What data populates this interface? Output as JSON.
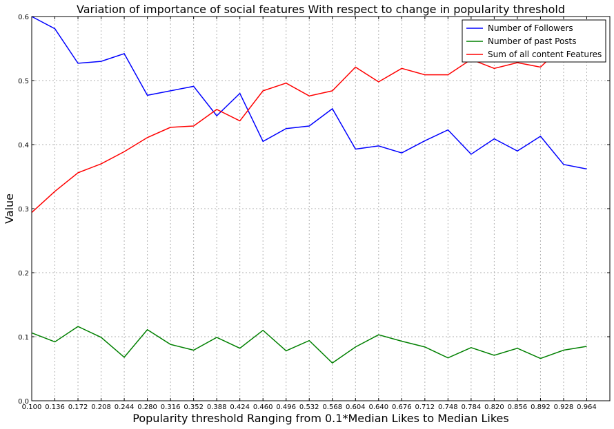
{
  "chart_data": {
    "type": "line",
    "title": "Variation of importance of social features With respect to change in popularity threshold",
    "xlabel": "Popularity threshold Ranging from 0.1*Median Likes to Median Likes",
    "ylabel": "Value",
    "x": [
      0.1,
      0.136,
      0.172,
      0.208,
      0.244,
      0.28,
      0.316,
      0.352,
      0.388,
      0.424,
      0.46,
      0.496,
      0.532,
      0.568,
      0.604,
      0.64,
      0.676,
      0.712,
      0.748,
      0.784,
      0.82,
      0.856,
      0.892,
      0.928,
      0.964
    ],
    "x_tick_labels": [
      "0.100",
      "0.136",
      "0.172",
      "0.208",
      "0.244",
      "0.280",
      "0.316",
      "0.352",
      "0.388",
      "0.424",
      "0.460",
      "0.496",
      "0.532",
      "0.568",
      "0.604",
      "0.640",
      "0.676",
      "0.712",
      "0.748",
      "0.784",
      "0.820",
      "0.856",
      "0.892",
      "0.928",
      "0.964"
    ],
    "xlim": [
      0.1,
      1.0
    ],
    "ylim": [
      0.0,
      0.6
    ],
    "y_tick_labels": [
      "0.0",
      "0.1",
      "0.2",
      "0.3",
      "0.4",
      "0.5",
      "0.6"
    ],
    "grid": true,
    "legend_position": "top-right",
    "series": [
      {
        "name": "Number of Followers",
        "color": "#0000ff",
        "values": [
          0.6,
          0.581,
          0.527,
          0.53,
          0.542,
          0.477,
          0.484,
          0.491,
          0.445,
          0.48,
          0.405,
          0.425,
          0.429,
          0.456,
          0.393,
          0.398,
          0.387,
          0.406,
          0.423,
          0.385,
          0.409,
          0.39,
          0.413,
          0.369,
          0.362
        ]
      },
      {
        "name": "Number of past Posts",
        "color": "#008000",
        "values": [
          0.106,
          0.092,
          0.116,
          0.099,
          0.068,
          0.111,
          0.088,
          0.079,
          0.099,
          0.082,
          0.11,
          0.078,
          0.094,
          0.059,
          0.084,
          0.103,
          0.093,
          0.084,
          0.067,
          0.083,
          0.071,
          0.082,
          0.066,
          0.079,
          0.085
        ]
      },
      {
        "name": "Sum of all content Features",
        "color": "#ff0000",
        "values": [
          0.294,
          0.327,
          0.356,
          0.37,
          0.389,
          0.411,
          0.427,
          0.429,
          0.455,
          0.437,
          0.484,
          0.496,
          0.476,
          0.484,
          0.521,
          0.498,
          0.519,
          0.509,
          0.509,
          0.533,
          0.519,
          0.528,
          0.521,
          0.555,
          0.556
        ]
      }
    ]
  }
}
